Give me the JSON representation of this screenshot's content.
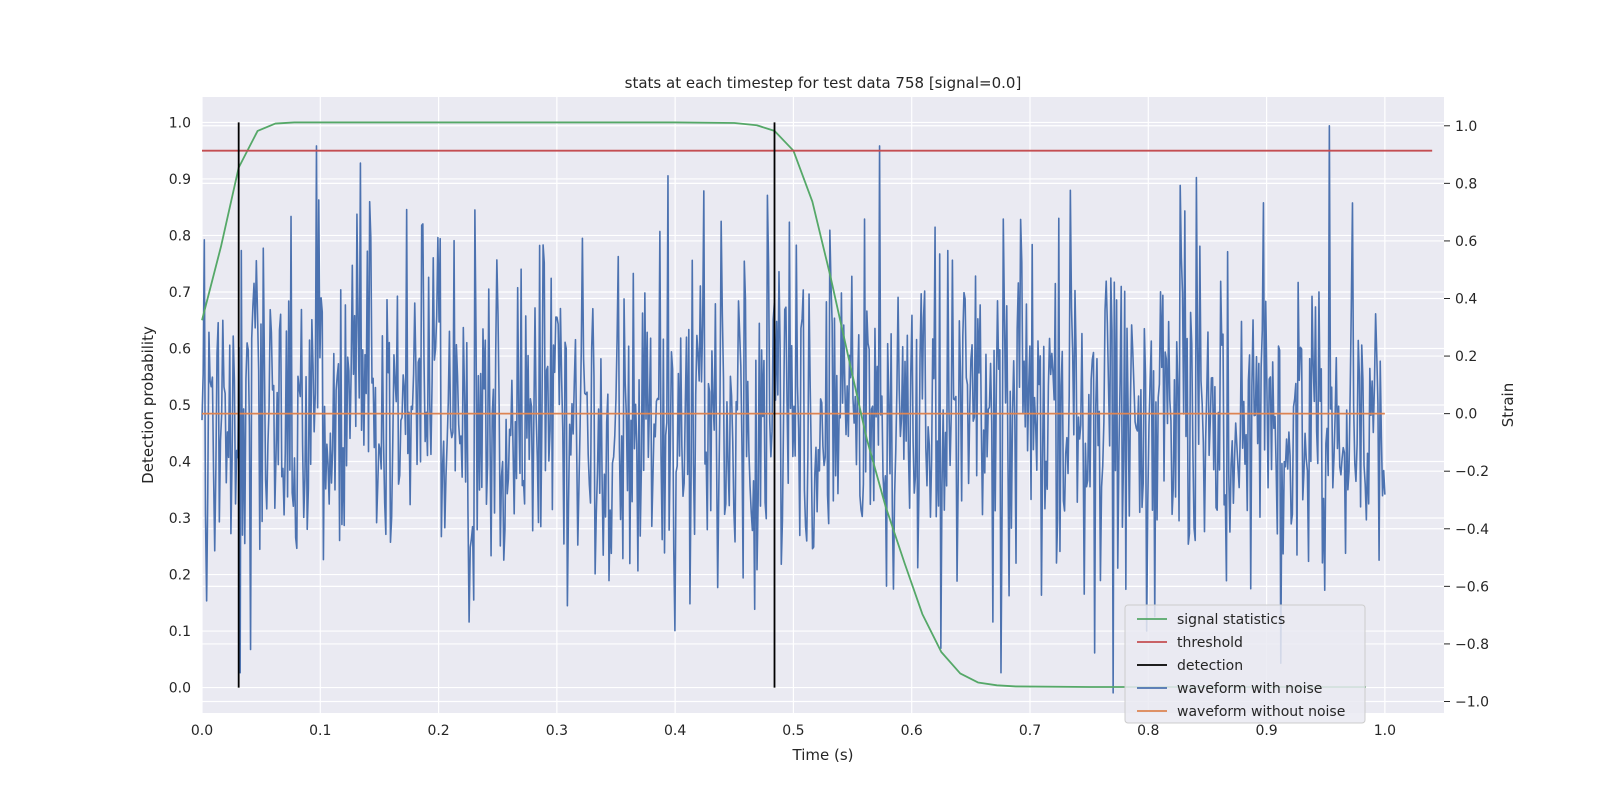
{
  "chart_data": {
    "type": "line",
    "title": "stats at each timestep for test data 758 [signal=0.0]",
    "xlabel": "Time (s)",
    "ylabel_left": "Detection probability",
    "ylabel_right": "Strain",
    "xlim": [
      0.0,
      1.05
    ],
    "ylim_left": [
      -0.045,
      1.045
    ],
    "ylim_right": [
      -1.04,
      1.1
    ],
    "x_ticks": [
      "0.0",
      "0.1",
      "0.2",
      "0.3",
      "0.4",
      "0.5",
      "0.6",
      "0.7",
      "0.8",
      "0.9",
      "1.0"
    ],
    "y_left_ticks": [
      "0.0",
      "0.1",
      "0.2",
      "0.3",
      "0.4",
      "0.5",
      "0.6",
      "0.7",
      "0.8",
      "0.9",
      "1.0"
    ],
    "y_right_ticks": [
      "−1.0",
      "−0.8",
      "−0.6",
      "−0.4",
      "−0.2",
      "0.0",
      "0.2",
      "0.4",
      "0.6",
      "0.8",
      "1.0"
    ],
    "grid": true,
    "legend_position": "lower-right",
    "series": [
      {
        "name": "signal statistics",
        "axis": "left",
        "color": "#55a868",
        "x": [
          0.0,
          0.016,
          0.031,
          0.047,
          0.062,
          0.078,
          0.094,
          0.2,
          0.3,
          0.4,
          0.45,
          0.469,
          0.484,
          0.5,
          0.516,
          0.531,
          0.547,
          0.562,
          0.578,
          0.594,
          0.609,
          0.625,
          0.641,
          0.656,
          0.672,
          0.688,
          0.75,
          0.9,
          0.984
        ],
        "values": [
          0.65,
          0.78,
          0.92,
          0.985,
          0.998,
          1.0,
          1.0,
          1.0,
          1.0,
          1.0,
          0.999,
          0.995,
          0.985,
          0.95,
          0.86,
          0.73,
          0.58,
          0.44,
          0.32,
          0.22,
          0.13,
          0.063,
          0.025,
          0.009,
          0.004,
          0.002,
          0.001,
          0.001,
          0.001
        ]
      },
      {
        "name": "threshold",
        "axis": "left",
        "color": "#c44e52",
        "x": [
          0.0,
          1.04
        ],
        "values": [
          0.95,
          0.95
        ]
      },
      {
        "name": "detection",
        "axis": "left",
        "color": "#000000",
        "x": [
          0.031,
          0.484
        ],
        "values": [
          1.0,
          1.0
        ]
      },
      {
        "name": "waveform with noise",
        "axis": "right",
        "color": "#4c72b0",
        "x_range": [
          0.0,
          1.0
        ],
        "points": 1024,
        "amplitude_sd": 0.3,
        "min": -0.97,
        "max": 1.0
      },
      {
        "name": "waveform without noise",
        "axis": "right",
        "color": "#dd8452",
        "x": [
          0.0,
          1.0
        ],
        "values": [
          0.0,
          0.0
        ]
      }
    ]
  }
}
